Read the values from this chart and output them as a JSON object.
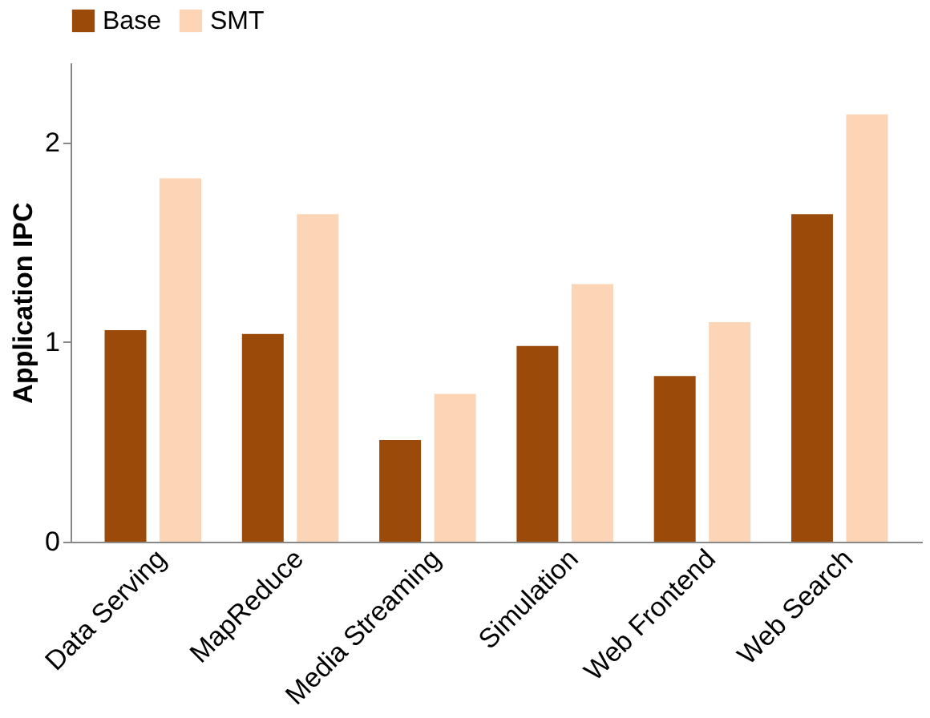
{
  "chart_data": {
    "type": "bar",
    "ylabel": "Application IPC",
    "categories": [
      "Data Serving",
      "MapReduce",
      "Media Streaming",
      "Simulation",
      "Web Frontend",
      "Web Search"
    ],
    "series": [
      {
        "name": "Base",
        "color": "#9c4a0a",
        "values": [
          1.06,
          1.04,
          0.51,
          0.98,
          0.83,
          1.64
        ]
      },
      {
        "name": "SMT",
        "color": "#fbd5b5",
        "values": [
          1.82,
          1.64,
          0.74,
          1.29,
          1.1,
          2.14
        ]
      }
    ],
    "ylim": [
      0,
      2.4
    ],
    "yticks": [
      0,
      1,
      2
    ],
    "grid": false,
    "legend": "top"
  }
}
